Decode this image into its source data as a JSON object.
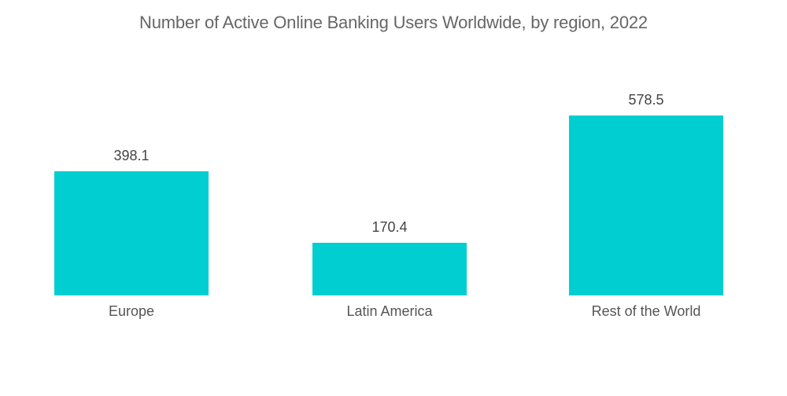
{
  "chart_data": {
    "type": "bar",
    "title": "Number of Active Online Banking Users Worldwide, by region, 2022",
    "categories": [
      "Europe",
      "Latin America",
      "Rest of the World"
    ],
    "values": [
      398.1,
      170.4,
      578.5
    ],
    "value_labels": [
      "398.1",
      "170.4",
      "578.5"
    ],
    "xlabel": "",
    "ylabel": "",
    "ylim": [
      0,
      578.5
    ],
    "grid": false,
    "legend": null,
    "bar_color": "#00ced1"
  }
}
